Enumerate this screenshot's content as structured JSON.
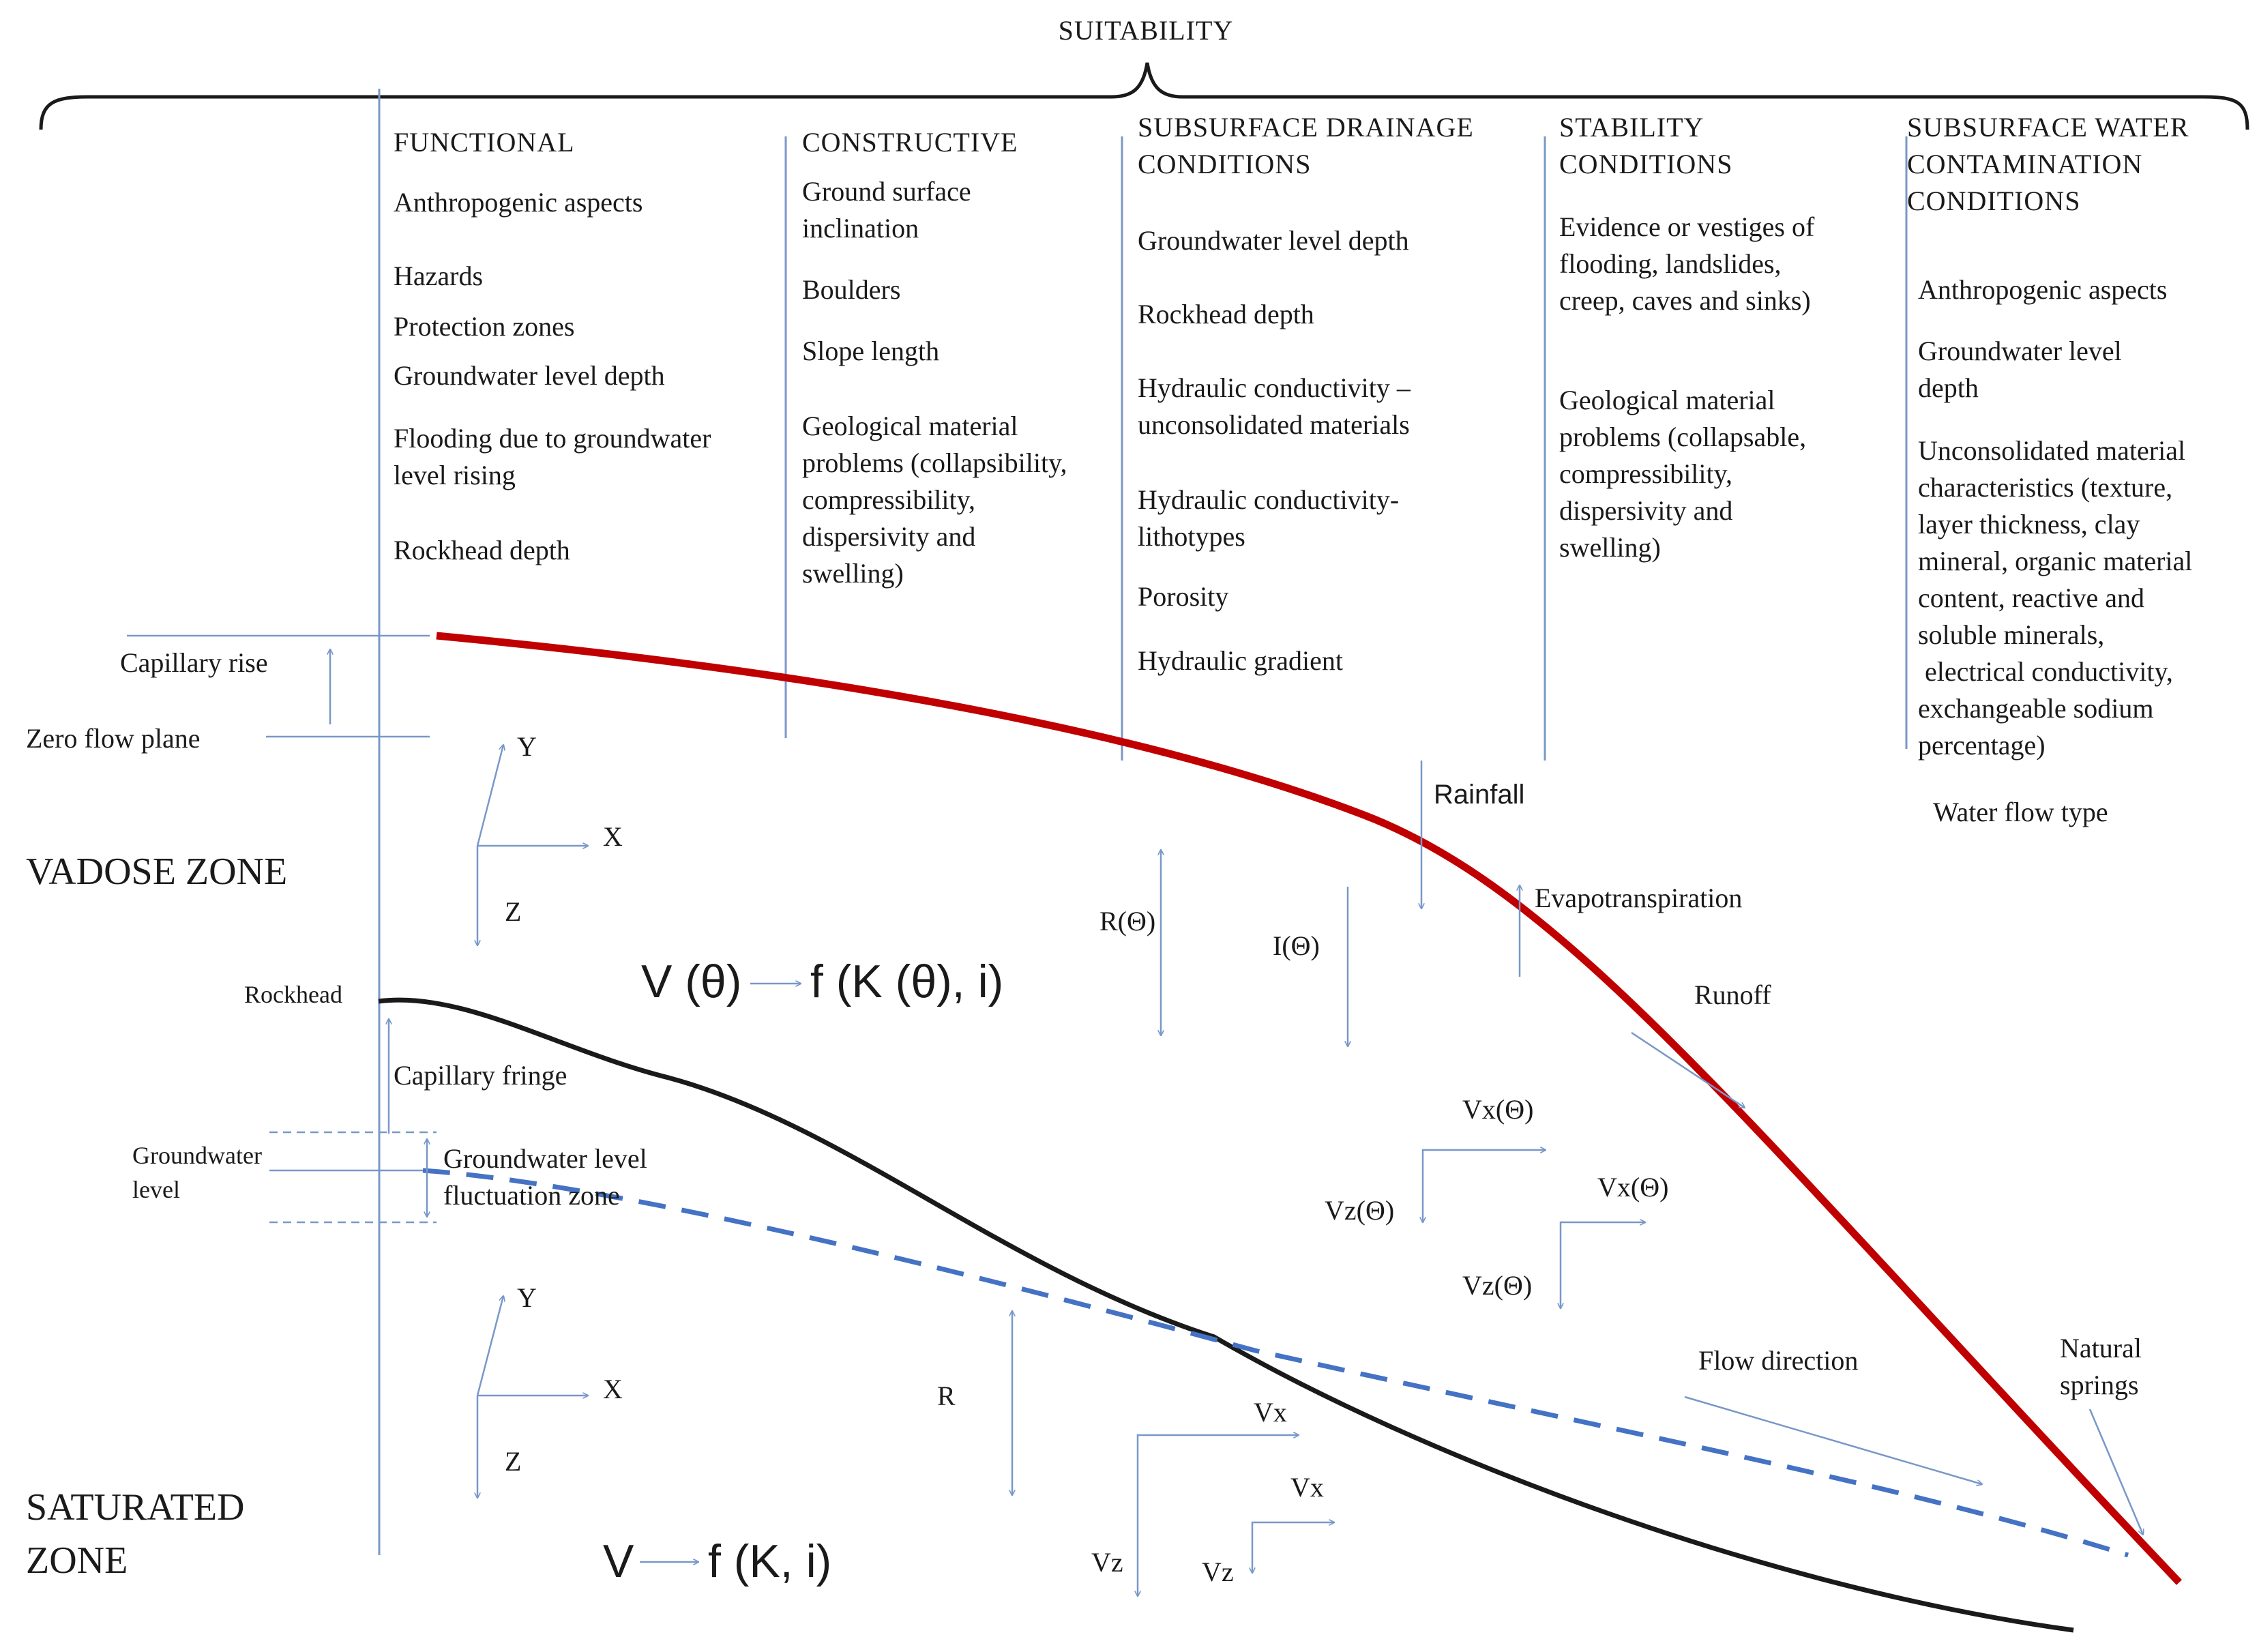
{
  "title": "SUITABILITY",
  "columns": [
    {
      "id": "functional",
      "heading": [
        "FUNCTIONAL"
      ],
      "items": [
        [
          "Anthropogenic aspects"
        ],
        [
          "Hazards"
        ],
        [
          "Protection zones"
        ],
        [
          "Groundwater level depth"
        ],
        [
          "Flooding due to groundwater",
          "level rising"
        ],
        [
          "Rockhead  depth"
        ]
      ]
    },
    {
      "id": "constructive",
      "heading": [
        "CONSTRUCTIVE"
      ],
      "items": [
        [
          "Ground surface",
          "inclination"
        ],
        [
          "Boulders"
        ],
        [
          "Slope length"
        ],
        [
          "Geological material",
          "problems (collapsibility,",
          "compressibility,",
          "dispersivity and",
          "swelling)"
        ]
      ]
    },
    {
      "id": "drainage",
      "heading": [
        "SUBSURFACE DRAINAGE",
        "CONDITIONS"
      ],
      "items": [
        [
          "Groundwater level depth"
        ],
        [
          "Rockhead depth"
        ],
        [
          "Hydraulic conductivity –",
          "unconsolidated materials"
        ],
        [
          "Hydraulic conductivity-",
          "lithotypes"
        ],
        [
          "Porosity"
        ],
        [
          "Hydraulic gradient"
        ]
      ]
    },
    {
      "id": "stability",
      "heading": [
        "STABILITY",
        "CONDITIONS"
      ],
      "items": [
        [
          "Evidence or vestiges of",
          "flooding, landslides,",
          "creep, caves and  sinks)"
        ],
        [
          "Geological material",
          "problems (collapsable,",
          "compressibility,",
          "dispersivity and",
          "swelling)"
        ]
      ]
    },
    {
      "id": "contamination",
      "heading": [
        "SUBSURFACE WATER",
        "CONTAMINATION",
        "CONDITIONS"
      ],
      "items": [
        [
          "Anthropogenic aspects"
        ],
        [
          "Groundwater level",
          "depth"
        ],
        [
          "Unconsolidated material",
          "characteristics (texture,",
          "layer thickness, clay",
          "mineral, organic material",
          "content, reactive and",
          "soluble minerals,",
          " electrical conductivity,",
          "exchangeable sodium",
          "percentage)"
        ],
        [
          "Water flow  type"
        ]
      ]
    }
  ],
  "left_labels": {
    "capillary_rise": "Capillary rise",
    "zero_flow_plane": "Zero flow  plane",
    "vadose_zone": "VADOSE ZONE",
    "rockhead": "Rockhead",
    "capillary_fringe": "Capillary fringe",
    "groundwater_level": [
      "Groundwater",
      "level"
    ],
    "fluctuation_zone": [
      "Groundwater level",
      "fluctuation zone"
    ],
    "saturated_zone": [
      "SATURATED",
      "ZONE"
    ]
  },
  "axes": {
    "x": "X",
    "y": "Y",
    "z": "Z"
  },
  "equations": {
    "vadose_v": "V (θ)",
    "vadose_f": "f (K (θ), i)",
    "saturated_v": "V",
    "saturated_f": "f (K, i)"
  },
  "process_labels": {
    "rainfall": "Rainfall",
    "evapotranspiration": "Evapotranspiration",
    "runoff": "Runoff",
    "r_theta": "R(Θ)",
    "i_theta": "I(Θ)",
    "vx_theta": "Vx(Θ)",
    "vz_theta": "Vz(Θ)",
    "r": "R",
    "vx": "Vx",
    "vz": "Vz",
    "flow_direction": "Flow direction",
    "natural_springs": [
      "Natural",
      "springs"
    ]
  },
  "colors": {
    "ground_surface": "#c00000",
    "rockhead_line": "#1a1a1a",
    "groundwater_line": "#4472c4",
    "guide_lines": "#7898c8",
    "text": "#1a1a1a"
  }
}
